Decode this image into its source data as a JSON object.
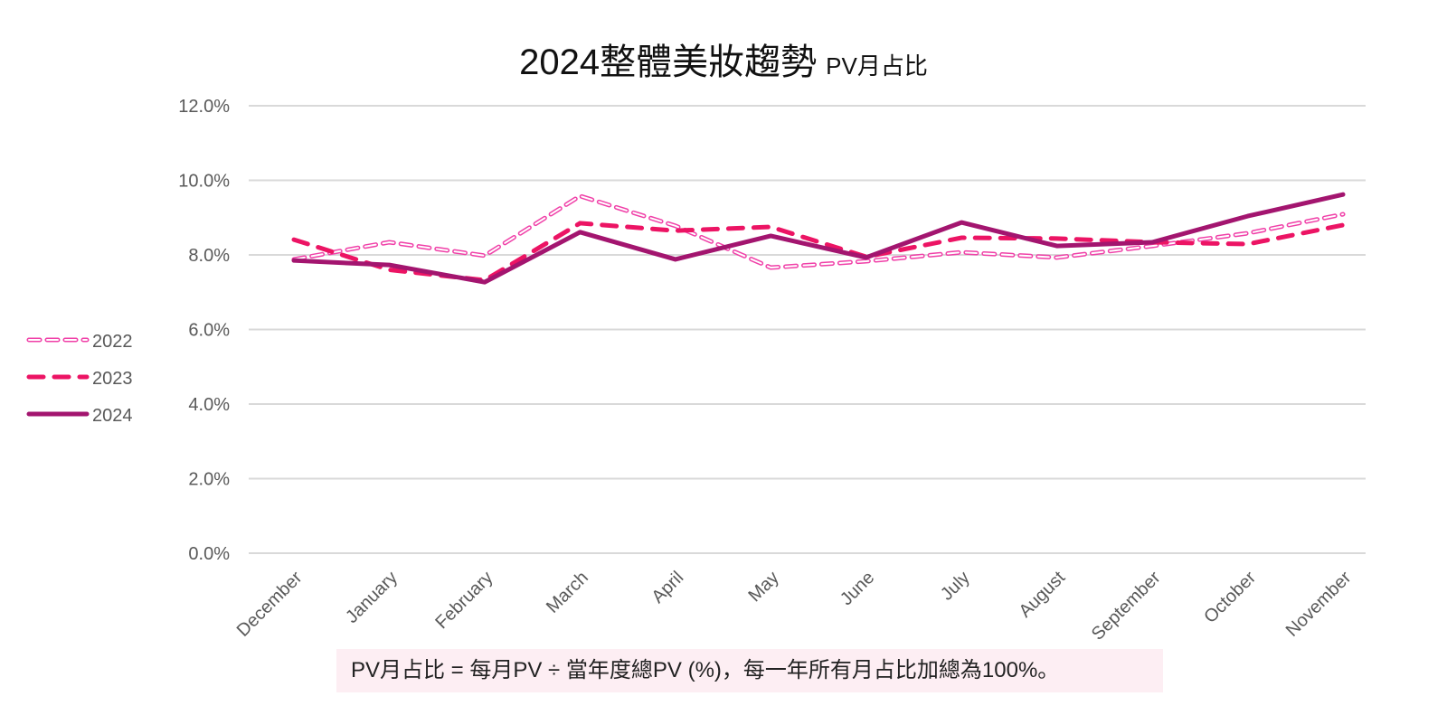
{
  "chart_data": {
    "type": "line",
    "title": "2024整體美妝趨勢",
    "subtitle": "PV月占比",
    "categories": [
      "December",
      "January",
      "February",
      "March",
      "April",
      "May",
      "June",
      "July",
      "August",
      "September",
      "October",
      "November"
    ],
    "ylim": [
      0,
      12
    ],
    "yticks": [
      "0.0%",
      "2.0%",
      "4.0%",
      "6.0%",
      "8.0%",
      "10.0%",
      "12.0%"
    ],
    "ytick_values": [
      0,
      2,
      4,
      6,
      8,
      10,
      12
    ],
    "grid": true,
    "legend_position": "left",
    "series": [
      {
        "name": "2022",
        "style": "hollow-dash",
        "color": "#f040a8",
        "values": [
          7.88,
          8.34,
          7.98,
          9.58,
          8.78,
          7.66,
          7.83,
          8.07,
          7.93,
          8.24,
          8.58,
          9.09
        ]
      },
      {
        "name": "2023",
        "style": "dash",
        "color": "#ec1464",
        "values": [
          8.41,
          7.6,
          7.32,
          8.85,
          8.65,
          8.75,
          7.95,
          8.46,
          8.44,
          8.34,
          8.29,
          8.8
        ]
      },
      {
        "name": "2024",
        "style": "solid",
        "color": "#a3156f",
        "values": [
          7.85,
          7.73,
          7.27,
          8.61,
          7.88,
          8.51,
          7.93,
          8.87,
          8.24,
          8.34,
          9.04,
          9.62
        ]
      }
    ]
  },
  "note": "PV月占比 = 每月PV ÷ 當年度總PV (%)，每一年所有月占比加總為100%。"
}
